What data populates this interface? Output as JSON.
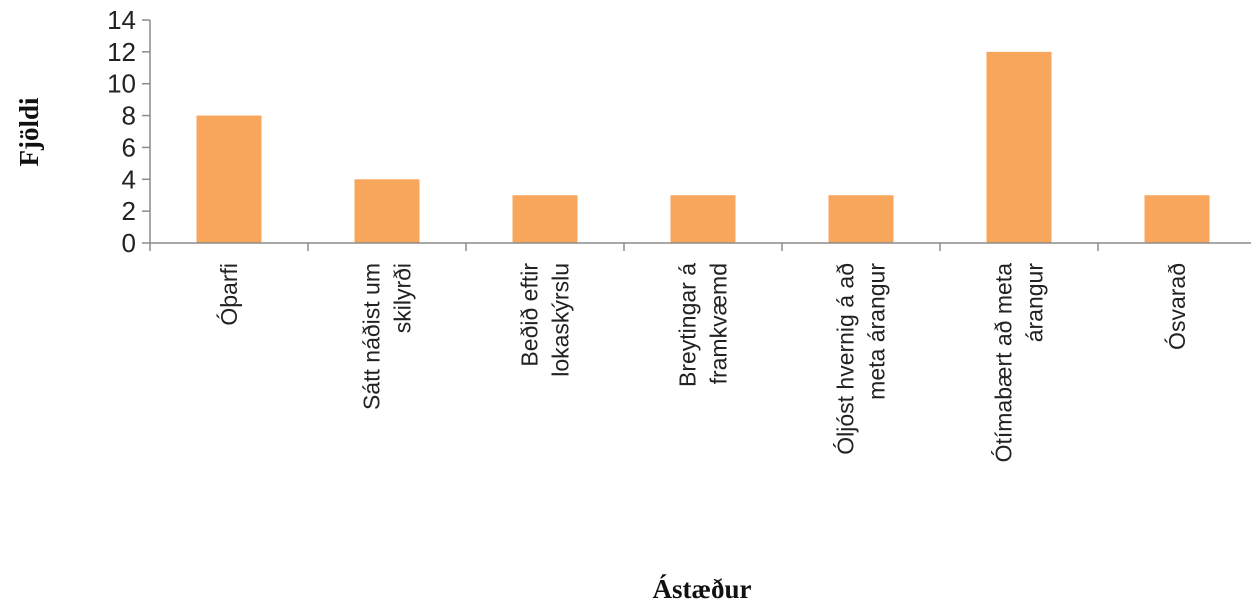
{
  "chart_data": {
    "type": "bar",
    "title": "",
    "xlabel": "Ástæður",
    "ylabel": "Fjöldi",
    "ylim": [
      0,
      14
    ],
    "yticks": [
      0,
      2,
      4,
      6,
      8,
      10,
      12,
      14
    ],
    "grid": false,
    "legend": "none",
    "bar_color": "#f8a65c",
    "categories": [
      [
        "Óþarfi"
      ],
      [
        "Sátt náðist um",
        "skilyrði"
      ],
      [
        "Beðið eftir",
        "lokaskýrslu"
      ],
      [
        "Breytingar á",
        "framkvæmd"
      ],
      [
        "Óljóst hvernig á að",
        "meta árangur"
      ],
      [
        "Ótímabært að meta",
        "árangur"
      ],
      [
        "Ósvarað"
      ]
    ],
    "values": [
      8,
      4,
      3,
      3,
      3,
      12,
      3
    ]
  }
}
